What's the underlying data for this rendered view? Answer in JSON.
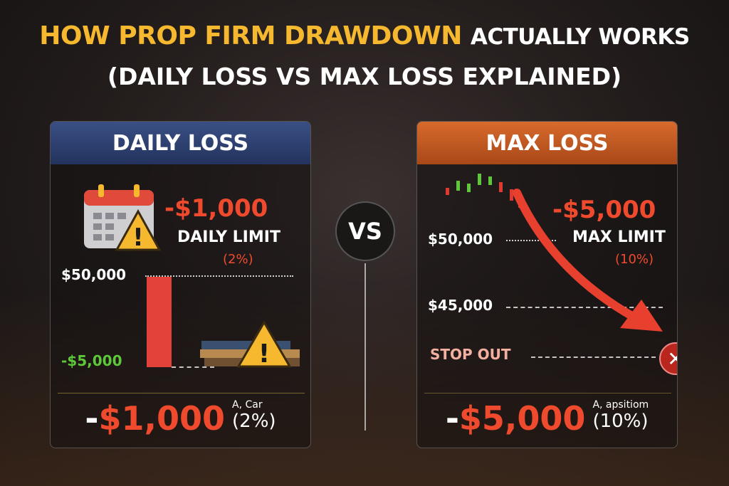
{
  "title": {
    "highlight": "HOW PROP FIRM DRAWDOWN",
    "rest": "ACTUALLY WORKS",
    "subtitle": "(DAILY LOSS VS MAX LOSS EXPLAINED)"
  },
  "vs": "VS",
  "daily": {
    "header": "DAILY LOSS",
    "amount": "-$1,000",
    "limit_label": "DAILY LIMIT",
    "limit_pct": "(2%)",
    "balance": "$50,000",
    "loss_level": "-$5,000",
    "bottom_minus": "-",
    "bottom_amount": "$1,000",
    "bottom_caption": "A, Car",
    "bottom_pct": "(2%)"
  },
  "max": {
    "header": "MAX LOSS",
    "amount": "-$5,000",
    "limit_label": "MAX LIMIT",
    "limit_pct": "(10%)",
    "balance": "$50,000",
    "floor": "$45,000",
    "stop": "STOP OUT",
    "bottom_minus": "-",
    "bottom_amount": "$5,000",
    "bottom_caption": "A, apsitiom",
    "bottom_pct": "(10%)"
  },
  "colors": {
    "accent_yellow": "#f5b82e",
    "loss_red": "#f04a2e",
    "daily_header": "#2e4070",
    "max_header": "#c85a22",
    "green": "#5ec83a"
  },
  "icons": [
    "calendar-icon",
    "warning-icon",
    "books-icon",
    "close-circle-icon",
    "down-arrow-icon"
  ]
}
